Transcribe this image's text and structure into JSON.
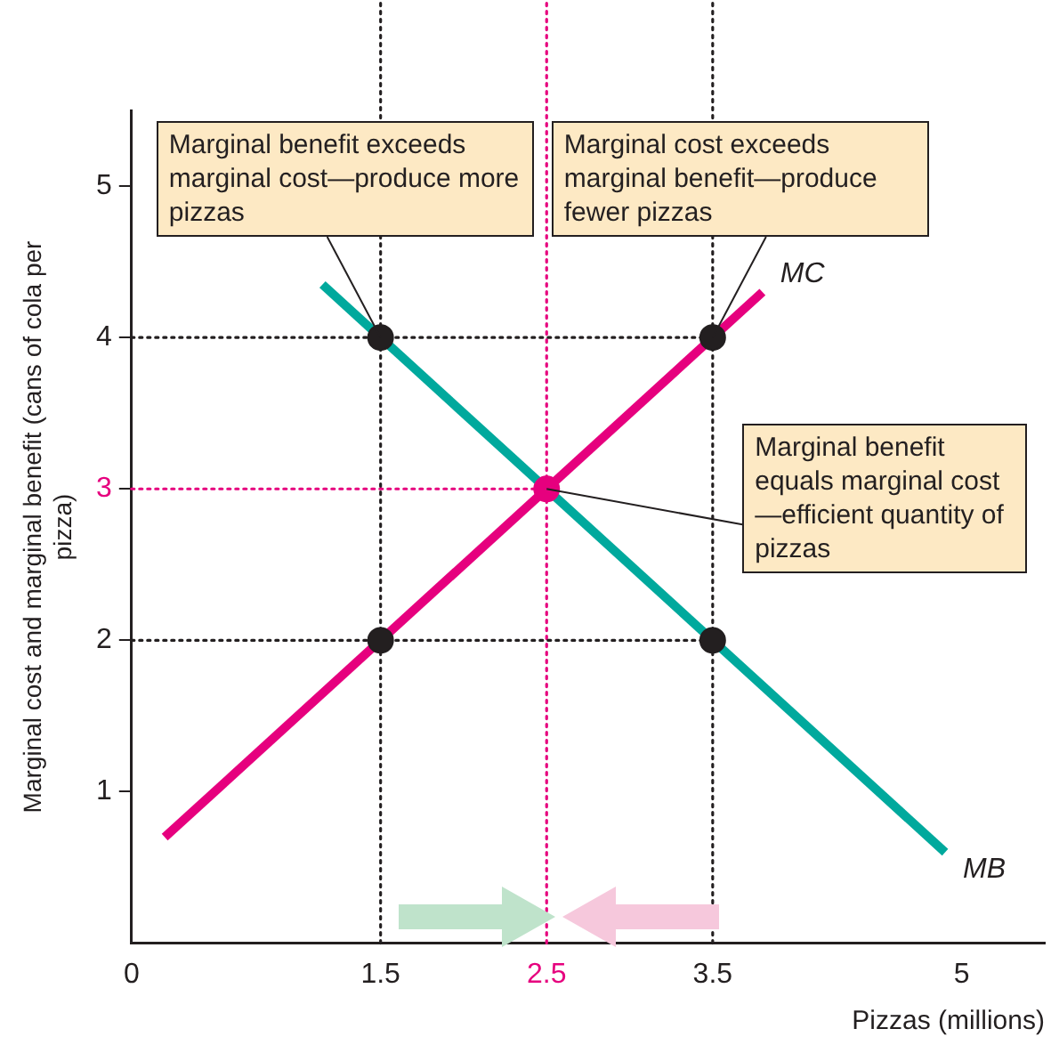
{
  "chart_data": {
    "type": "line",
    "xlabel": "Pizzas (millions)",
    "ylabel": "Marginal cost and marginal benefit (cans of cola per pizza)",
    "xlim": [
      0,
      5.5
    ],
    "ylim": [
      0,
      5.5
    ],
    "xticks": [
      0,
      1.5,
      2.5,
      3.5,
      5
    ],
    "yticks": [
      1,
      2,
      3,
      4,
      5
    ],
    "series": [
      {
        "name": "MC",
        "color": "#e6007e",
        "x": [
          0.2,
          3.8
        ],
        "values": [
          0.7,
          4.3
        ],
        "marker": "none"
      },
      {
        "name": "MB",
        "color": "#00a99d",
        "x": [
          1.15,
          4.9
        ],
        "values": [
          4.35,
          0.6
        ],
        "marker": "none"
      },
      {
        "type": "scatter",
        "marker": "circle",
        "x": [
          1.5,
          3.5,
          1.5,
          3.5,
          2.5
        ],
        "values": [
          4,
          4,
          2,
          2,
          3
        ],
        "colors": [
          "#231f20",
          "#231f20",
          "#231f20",
          "#231f20",
          "#e6007e"
        ]
      }
    ],
    "ref_lines": [
      {
        "axis": "x",
        "value": 1.5,
        "color": "#231f20",
        "line_style": "dotted"
      },
      {
        "axis": "x",
        "value": 2.5,
        "color": "#e6007e",
        "line_style": "dotted"
      },
      {
        "axis": "x",
        "value": 3.5,
        "color": "#231f20",
        "line_style": "dotted"
      },
      {
        "axis": "y",
        "value": 4,
        "color": "#231f20",
        "line_style": "dotted"
      },
      {
        "axis": "y",
        "value": 3,
        "color": "#e6007e",
        "line_style": "dotted"
      },
      {
        "axis": "y",
        "value": 2,
        "color": "#231f20",
        "line_style": "dotted"
      }
    ],
    "annotations": [
      {
        "text": "Marginal benefit exceeds marginal cost—produce more pizzas",
        "x": 1.5,
        "y": 4
      },
      {
        "text": "Marginal cost exceeds marginal benefit—produce fewer pizzas",
        "x": 3.5,
        "y": 4
      },
      {
        "text": "Marginal benefit equals marginal cost—efficient quantity of pizzas",
        "x": 2.5,
        "y": 3
      }
    ],
    "grid": false,
    "legend": false
  }
}
